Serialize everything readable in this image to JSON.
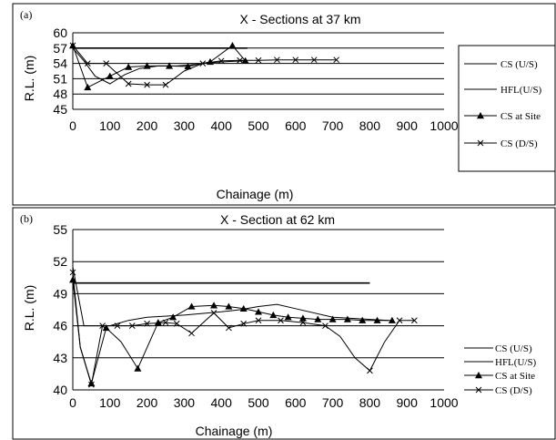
{
  "chart_data": [
    {
      "type": "line",
      "panel": "(a)",
      "title": "X - Sections at 37 km",
      "xlabel": "Chainage (m)",
      "ylabel": "R.L. (m)",
      "xlim": [
        0,
        1000
      ],
      "ylim": [
        45,
        60
      ],
      "xticks": [
        0,
        100,
        200,
        300,
        400,
        500,
        600,
        700,
        800,
        900,
        1000
      ],
      "yticks": [
        45,
        48,
        51,
        54,
        57,
        60
      ],
      "ytick_labels": [
        "45",
        "48",
        "51",
        "54",
        "57",
        "60"
      ],
      "grid": "horizontal",
      "legend_position": "right",
      "series": [
        {
          "name": "CS (U/S)",
          "marker": "none",
          "x": [
            0,
            30,
            60,
            100,
            140,
            180,
            230,
            280,
            330,
            380,
            430,
            470
          ],
          "y": [
            57,
            54.5,
            51.5,
            50,
            51.8,
            53,
            53.5,
            53.5,
            53.8,
            54.2,
            54.4,
            54.5
          ]
        },
        {
          "name": "HFL(U/S)",
          "marker": "none",
          "x": [
            0,
            470
          ],
          "y": [
            57,
            57
          ]
        },
        {
          "name": "CS at Site",
          "marker": "triangle",
          "x": [
            0,
            40,
            100,
            150,
            200,
            260,
            310,
            370,
            430,
            465
          ],
          "y": [
            57.5,
            49.3,
            51.5,
            53.3,
            53.5,
            53.5,
            53.4,
            54.3,
            57.5,
            54.5
          ],
          "mark_x": [
            0,
            40,
            100,
            150,
            200,
            260,
            310,
            370,
            430,
            465
          ],
          "mark_y": [
            57.5,
            49.3,
            51.5,
            53.3,
            53.5,
            53.5,
            53.4,
            54.3,
            57.5,
            54.5
          ]
        },
        {
          "name": "CS (D/S)",
          "marker": "cross",
          "x": [
            0,
            40,
            90,
            120,
            150,
            200,
            250,
            300,
            350,
            400,
            450,
            500,
            550,
            600,
            650,
            710
          ],
          "y": [
            57.5,
            54,
            54,
            52,
            50,
            49.8,
            49.8,
            52.5,
            54,
            54.5,
            54.6,
            54.6,
            54.7,
            54.7,
            54.7,
            54.7
          ],
          "mark_x": [
            0,
            40,
            90,
            150,
            200,
            250,
            350,
            400,
            450,
            500,
            550,
            600,
            650,
            710
          ],
          "mark_y": [
            57.5,
            54,
            54,
            50,
            49.8,
            49.8,
            54,
            54.5,
            54.6,
            54.6,
            54.7,
            54.7,
            54.7,
            54.7
          ]
        }
      ]
    },
    {
      "type": "line",
      "panel": "(b)",
      "title": "X - Section at 62 km",
      "xlabel": "Chainage (m)",
      "ylabel": "R.L. (m)",
      "xlim": [
        0,
        1000
      ],
      "ylim": [
        40,
        55
      ],
      "xticks": [
        0,
        100,
        200,
        300,
        400,
        500,
        600,
        700,
        800,
        900,
        1000
      ],
      "yticks": [
        40,
        43,
        46,
        49,
        52,
        55
      ],
      "ytick_labels": [
        "40",
        "43",
        "46",
        "49",
        "52",
        "55"
      ],
      "grid": "horizontal",
      "legend_position": "right",
      "series": [
        {
          "name": "CS (U/S)",
          "marker": "none",
          "x": [
            0,
            30,
            60,
            100,
            150,
            200,
            300,
            400,
            450,
            500,
            550,
            600,
            700,
            850
          ],
          "y": [
            51.5,
            46,
            46,
            46,
            46.5,
            46.8,
            47,
            47.3,
            47.5,
            47.8,
            48,
            47.6,
            46.8,
            46.5
          ],
          "mark_x": [],
          "mark_y": []
        },
        {
          "name": "HFL(U/S)",
          "marker": "none",
          "x": [
            0,
            800
          ],
          "y": [
            50,
            50
          ],
          "mark_x": [],
          "mark_y": []
        },
        {
          "name": "CS at Site",
          "marker": "triangle",
          "x": [
            0,
            20,
            50,
            90,
            130,
            175,
            230,
            270,
            320,
            380,
            420,
            460,
            500,
            540,
            580,
            620,
            660,
            700,
            740,
            780,
            820,
            860
          ],
          "y": [
            50.3,
            44,
            40.6,
            45.8,
            44.5,
            42,
            46.3,
            46.8,
            47.8,
            47.9,
            47.8,
            47.6,
            47.3,
            47,
            46.8,
            46.7,
            46.6,
            46.6,
            46.6,
            46.5,
            46.5,
            46.5
          ],
          "mark_x": [
            0,
            50,
            90,
            175,
            230,
            270,
            320,
            380,
            420,
            460,
            500,
            540,
            580,
            620,
            660,
            700,
            740,
            780,
            820,
            860
          ],
          "mark_y": [
            50.3,
            40.6,
            45.8,
            42,
            46.3,
            46.8,
            47.8,
            47.9,
            47.8,
            47.6,
            47.3,
            47,
            46.8,
            46.7,
            46.6,
            46.6,
            46.6,
            46.5,
            46.5,
            46.5
          ]
        },
        {
          "name": "CS (D/S)",
          "marker": "cross",
          "x": [
            0,
            20,
            50,
            80,
            120,
            160,
            200,
            250,
            280,
            320,
            380,
            420,
            460,
            500,
            560,
            620,
            680,
            720,
            760,
            800,
            840,
            880,
            920
          ],
          "y": [
            51,
            44,
            40.5,
            46,
            46,
            46,
            46.2,
            46.3,
            46.2,
            45.3,
            47.2,
            45.8,
            46.2,
            46.5,
            46.5,
            46.3,
            46,
            45,
            43,
            41.8,
            44.5,
            46.5,
            46.5
          ],
          "mark_x": [
            0,
            50,
            80,
            120,
            160,
            200,
            250,
            280,
            320,
            380,
            420,
            460,
            500,
            560,
            620,
            680,
            800,
            880,
            920
          ],
          "mark_y": [
            51,
            40.5,
            46,
            46,
            46,
            46.2,
            46.3,
            46.2,
            45.3,
            47.2,
            45.8,
            46.2,
            46.5,
            46.5,
            46.3,
            46,
            41.8,
            46.5,
            46.5
          ]
        }
      ]
    }
  ]
}
